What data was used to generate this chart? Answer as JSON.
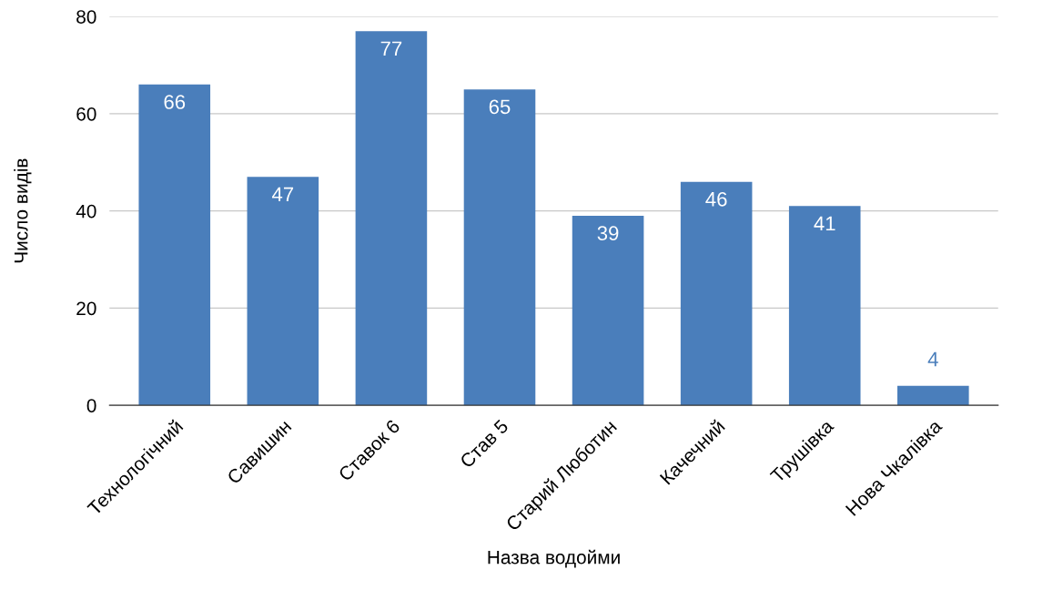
{
  "chart_data": {
    "type": "bar",
    "xlabel": "Назва водойми",
    "ylabel": "Число видів",
    "categories": [
      "Технологічний",
      "Савишин",
      "Ставок 6",
      "Став 5",
      "Старий Люботин",
      "Качечний",
      "Трушівка",
      "Нова Чкалівка"
    ],
    "values": [
      66,
      47,
      77,
      65,
      39,
      46,
      41,
      4
    ],
    "color": "#4a7ebb",
    "ylim": [
      0,
      80
    ],
    "yticks": [
      0,
      20,
      40,
      60,
      80
    ],
    "grid": "y",
    "data_labels": true,
    "legend": false
  }
}
